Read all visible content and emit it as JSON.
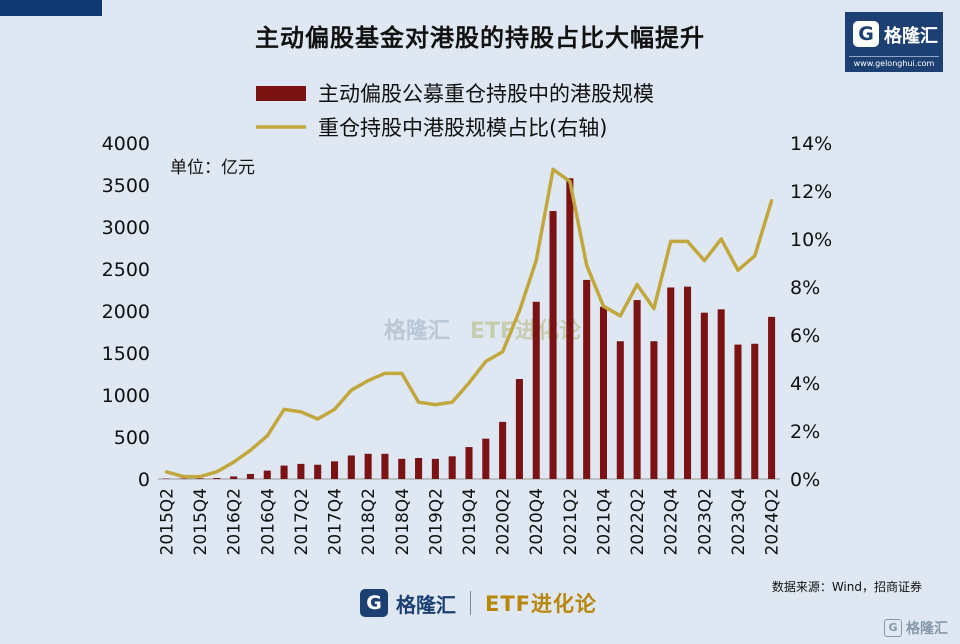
{
  "title": "主动偏股基金对港股的持股占比大幅提升",
  "brand": {
    "logo_mark": "G",
    "name": "格隆汇",
    "site": "www.gelonghui.com",
    "etf_label": "ETF进化论",
    "corner_name": "格隆汇"
  },
  "unit_label": "单位：亿元",
  "source": "数据来源：Wind，招商证券",
  "colors": {
    "bar": "#7b1214",
    "line": "#c2a73e",
    "background": "#dfe8f2",
    "brand_navy": "#1c4072",
    "etf_gold": "#b8860b"
  },
  "chart_data": {
    "type": "bar",
    "x_tick_labels": [
      "2015Q2",
      "2015Q4",
      "2016Q2",
      "2016Q4",
      "2017Q2",
      "2017Q4",
      "2018Q2",
      "2018Q4",
      "2019Q2",
      "2019Q4",
      "2020Q2",
      "2020Q4",
      "2021Q2",
      "2021Q4",
      "2022Q2",
      "2022Q4",
      "2023Q2",
      "2023Q4",
      "2024Q2"
    ],
    "categories": [
      "2015Q2",
      "2015Q3",
      "2015Q4",
      "2016Q1",
      "2016Q2",
      "2016Q3",
      "2016Q4",
      "2017Q1",
      "2017Q2",
      "2017Q3",
      "2017Q4",
      "2018Q1",
      "2018Q2",
      "2018Q3",
      "2018Q4",
      "2019Q1",
      "2019Q2",
      "2019Q3",
      "2019Q4",
      "2020Q1",
      "2020Q2",
      "2020Q3",
      "2020Q4",
      "2021Q1",
      "2021Q2",
      "2021Q3",
      "2021Q4",
      "2022Q1",
      "2022Q2",
      "2022Q3",
      "2022Q4",
      "2023Q1",
      "2023Q2",
      "2023Q3",
      "2023Q4",
      "2024Q1",
      "2024Q2"
    ],
    "series": [
      {
        "name": "主动偏股公募重仓持股中的港股规模",
        "type": "bar",
        "axis": "left",
        "values": [
          5,
          5,
          8,
          12,
          30,
          60,
          100,
          160,
          180,
          170,
          210,
          280,
          300,
          300,
          240,
          250,
          240,
          270,
          380,
          480,
          680,
          1190,
          2110,
          3190,
          3580,
          2370,
          2050,
          1640,
          2130,
          1640,
          2280,
          2290,
          1980,
          2020,
          1600,
          1610,
          1930
        ]
      },
      {
        "name": "重仓持股中港股规模占比(右轴)",
        "type": "line",
        "axis": "right",
        "values": [
          0.3,
          0.1,
          0.1,
          0.3,
          0.7,
          1.2,
          1.8,
          2.9,
          2.8,
          2.5,
          2.9,
          3.7,
          4.1,
          4.4,
          4.4,
          3.2,
          3.1,
          3.2,
          4.0,
          4.9,
          5.3,
          7.0,
          9.1,
          12.9,
          12.4,
          8.9,
          7.2,
          6.8,
          8.1,
          7.1,
          9.9,
          9.9,
          9.1,
          10.0,
          8.7,
          9.3,
          11.6
        ]
      }
    ],
    "ylim_left": [
      0,
      4000
    ],
    "yticks_left": [
      0,
      500,
      1000,
      1500,
      2000,
      2500,
      3000,
      3500,
      4000
    ],
    "ylim_right": [
      0,
      14
    ],
    "yticks_right_labels": [
      "0%",
      "2%",
      "4%",
      "6%",
      "8%",
      "10%",
      "12%",
      "14%"
    ],
    "grid": false,
    "legend_position": "top-center"
  }
}
